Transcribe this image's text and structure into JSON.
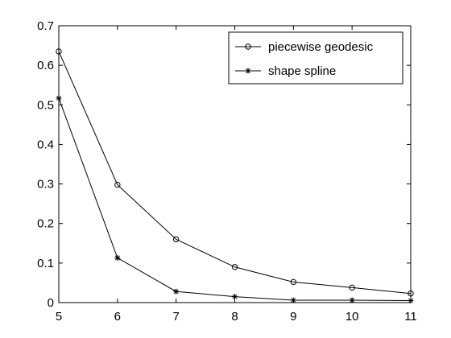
{
  "chart_data": {
    "type": "line",
    "title": "",
    "xlabel": "",
    "ylabel": "",
    "x": [
      5,
      6,
      7,
      8,
      9,
      10,
      11
    ],
    "xlim": [
      5,
      11
    ],
    "ylim": [
      0,
      0.7
    ],
    "xticks": [
      "5",
      "6",
      "7",
      "8",
      "9",
      "10",
      "11"
    ],
    "yticks": [
      "0",
      "0.1",
      "0.2",
      "0.3",
      "0.4",
      "0.5",
      "0.6",
      "0.7"
    ],
    "grid": false,
    "legend_position": "top-right",
    "series": [
      {
        "name": "piecewise geodesic",
        "marker": "circle",
        "color": "#000000",
        "values": [
          0.635,
          0.298,
          0.16,
          0.09,
          0.052,
          0.038,
          0.023
        ]
      },
      {
        "name": "shape spline",
        "marker": "asterisk",
        "color": "#000000",
        "values": [
          0.517,
          0.113,
          0.028,
          0.015,
          0.006,
          0.006,
          0.005
        ]
      }
    ]
  }
}
